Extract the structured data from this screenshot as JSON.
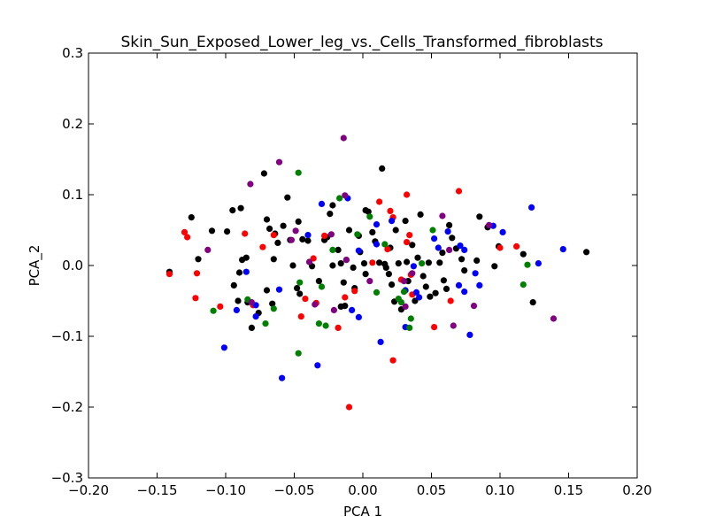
{
  "chart_data": {
    "type": "scatter",
    "title": "Skin_Sun_Exposed_Lower_leg_vs._Cells_Transformed_fibroblasts",
    "xlabel": "PCA 1",
    "ylabel": "PCA_2",
    "xlim": [
      -0.2,
      0.2
    ],
    "ylim": [
      -0.3,
      0.3
    ],
    "x_ticks": [
      -0.2,
      -0.15,
      -0.1,
      -0.05,
      0.0,
      0.05,
      0.1,
      0.15,
      0.2
    ],
    "x_tick_labels": [
      "−0.20",
      "−0.15",
      "−0.10",
      "−0.05",
      "0.00",
      "0.05",
      "0.10",
      "0.15",
      "0.20"
    ],
    "y_ticks": [
      -0.3,
      -0.2,
      -0.1,
      0.0,
      0.1,
      0.2,
      0.3
    ],
    "y_tick_labels": [
      "−0.3",
      "−0.2",
      "−0.1",
      "0.0",
      "0.1",
      "0.2",
      "0.3"
    ],
    "grid": false,
    "legend": "none",
    "series": [
      {
        "color": "#000000",
        "points": [
          [
            -0.141,
            -0.009
          ],
          [
            -0.125,
            0.068
          ],
          [
            -0.12,
            0.009
          ],
          [
            -0.11,
            0.049
          ],
          [
            -0.099,
            0.048
          ],
          [
            -0.095,
            0.078
          ],
          [
            -0.089,
            0.081
          ],
          [
            -0.088,
            0.008
          ],
          [
            -0.085,
            0.011
          ],
          [
            -0.09,
            -0.01
          ],
          [
            -0.094,
            -0.028
          ],
          [
            -0.091,
            -0.05
          ],
          [
            -0.084,
            -0.052
          ],
          [
            -0.081,
            -0.088
          ],
          [
            -0.076,
            -0.067
          ],
          [
            -0.072,
            0.13
          ],
          [
            -0.07,
            0.065
          ],
          [
            -0.068,
            0.052
          ],
          [
            -0.064,
            0.045
          ],
          [
            -0.062,
            0.032
          ],
          [
            -0.065,
            0.009
          ],
          [
            -0.07,
            -0.035
          ],
          [
            -0.066,
            -0.054
          ],
          [
            -0.058,
            0.056
          ],
          [
            -0.055,
            0.096
          ],
          [
            -0.053,
            0.036
          ],
          [
            -0.051,
            0.0
          ],
          [
            -0.048,
            -0.032
          ],
          [
            -0.046,
            -0.04
          ],
          [
            -0.047,
            0.062
          ],
          [
            -0.044,
            0.037
          ],
          [
            -0.04,
            0.035
          ],
          [
            -0.037,
            -0.001
          ],
          [
            -0.032,
            -0.022
          ],
          [
            -0.028,
            0.036
          ],
          [
            -0.026,
            0.04
          ],
          [
            -0.024,
            0.073
          ],
          [
            -0.022,
            0.085
          ],
          [
            -0.022,
            0.0
          ],
          [
            -0.018,
            0.022
          ],
          [
            -0.016,
            0.003
          ],
          [
            -0.014,
            -0.024
          ],
          [
            -0.016,
            -0.058
          ],
          [
            -0.013,
            -0.057
          ],
          [
            -0.01,
            0.05
          ],
          [
            -0.007,
            -0.003
          ],
          [
            -0.006,
            -0.032
          ],
          [
            -0.003,
            0.042
          ],
          [
            -0.002,
            0.019
          ],
          [
            0.001,
            0.003
          ],
          [
            0.002,
            0.078
          ],
          [
            0.004,
            0.076
          ],
          [
            0.007,
            0.047
          ],
          [
            0.009,
            0.034
          ],
          [
            0.012,
            0.004
          ],
          [
            0.014,
            0.137
          ],
          [
            0.016,
            0.002
          ],
          [
            0.017,
            -0.003
          ],
          [
            0.019,
            -0.012
          ],
          [
            0.02,
            0.025
          ],
          [
            0.021,
            -0.027
          ],
          [
            0.023,
            -0.051
          ],
          [
            0.024,
            0.05
          ],
          [
            0.026,
            0.003
          ],
          [
            0.028,
            -0.062
          ],
          [
            0.031,
            0.063
          ],
          [
            0.032,
            0.005
          ],
          [
            0.033,
            -0.022
          ],
          [
            0.036,
            0.029
          ],
          [
            0.038,
            -0.05
          ],
          [
            0.04,
            0.011
          ],
          [
            0.042,
            0.072
          ],
          [
            0.044,
            -0.015
          ],
          [
            0.046,
            -0.03
          ],
          [
            0.048,
            0.004
          ],
          [
            0.049,
            -0.044
          ],
          [
            0.053,
            -0.039
          ],
          [
            0.056,
            0.004
          ],
          [
            0.058,
            0.018
          ],
          [
            0.059,
            -0.021
          ],
          [
            0.061,
            -0.033
          ],
          [
            0.063,
            0.057
          ],
          [
            0.065,
            0.039
          ],
          [
            0.068,
            0.024
          ],
          [
            0.072,
            0.009
          ],
          [
            0.074,
            -0.007
          ],
          [
            0.083,
            0.007
          ],
          [
            0.085,
            0.069
          ],
          [
            0.091,
            0.054
          ],
          [
            0.096,
            -0.001
          ],
          [
            0.099,
            0.027
          ],
          [
            0.117,
            0.016
          ],
          [
            0.124,
            -0.052
          ],
          [
            0.163,
            0.019
          ],
          [
            0.002,
            -0.012
          ]
        ]
      },
      {
        "color": "#ff0000",
        "points": [
          [
            -0.141,
            -0.012
          ],
          [
            -0.13,
            0.047
          ],
          [
            -0.128,
            0.04
          ],
          [
            -0.121,
            -0.011
          ],
          [
            -0.122,
            -0.046
          ],
          [
            -0.104,
            -0.058
          ],
          [
            -0.086,
            0.045
          ],
          [
            -0.073,
            0.026
          ],
          [
            -0.08,
            -0.056
          ],
          [
            -0.065,
            0.043
          ],
          [
            -0.045,
            -0.072
          ],
          [
            -0.042,
            -0.047
          ],
          [
            -0.036,
            0.01
          ],
          [
            -0.034,
            -0.053
          ],
          [
            -0.028,
            0.042
          ],
          [
            -0.018,
            -0.088
          ],
          [
            -0.013,
            -0.045
          ],
          [
            -0.01,
            -0.2
          ],
          [
            -0.006,
            -0.036
          ],
          [
            0.007,
            0.004
          ],
          [
            0.012,
            0.09
          ],
          [
            0.018,
            0.023
          ],
          [
            0.022,
            0.068
          ],
          [
            0.02,
            0.077
          ],
          [
            0.022,
            -0.134
          ],
          [
            0.032,
            0.1
          ],
          [
            0.032,
            0.033
          ],
          [
            0.034,
            0.043
          ],
          [
            0.035,
            -0.013
          ],
          [
            0.036,
            -0.041
          ],
          [
            0.052,
            -0.087
          ],
          [
            0.064,
            -0.05
          ],
          [
            0.07,
            0.105
          ],
          [
            0.1,
            0.025
          ],
          [
            0.112,
            0.027
          ],
          [
            0.028,
            -0.02
          ]
        ]
      },
      {
        "color": "#0000ff",
        "points": [
          [
            -0.101,
            -0.116
          ],
          [
            -0.092,
            -0.063
          ],
          [
            -0.078,
            -0.072
          ],
          [
            -0.059,
            -0.159
          ],
          [
            -0.04,
            0.043
          ],
          [
            -0.033,
            -0.141
          ],
          [
            -0.03,
            0.087
          ],
          [
            -0.011,
            0.095
          ],
          [
            -0.008,
            -0.063
          ],
          [
            -0.003,
            0.021
          ],
          [
            -0.003,
            -0.073
          ],
          [
            0.01,
            0.03
          ],
          [
            0.01,
            0.058
          ],
          [
            0.013,
            -0.108
          ],
          [
            0.021,
            0.063
          ],
          [
            0.031,
            -0.035
          ],
          [
            0.037,
            -0.001
          ],
          [
            0.039,
            -0.038
          ],
          [
            0.041,
            -0.045
          ],
          [
            0.052,
            0.038
          ],
          [
            0.055,
            0.025
          ],
          [
            0.062,
            0.048
          ],
          [
            0.071,
            0.028
          ],
          [
            0.074,
            0.022
          ],
          [
            0.07,
            -0.028
          ],
          [
            0.074,
            -0.037
          ],
          [
            0.078,
            -0.098
          ],
          [
            0.082,
            -0.011
          ],
          [
            0.095,
            0.056
          ],
          [
            0.102,
            0.047
          ],
          [
            0.123,
            0.082
          ],
          [
            0.128,
            0.003
          ],
          [
            0.146,
            0.023
          ],
          [
            -0.085,
            -0.009
          ],
          [
            -0.061,
            -0.034
          ],
          [
            0.031,
            -0.087
          ],
          [
            0.085,
            -0.028
          ],
          [
            -0.078,
            -0.056
          ]
        ]
      },
      {
        "color": "#008000",
        "points": [
          [
            -0.109,
            -0.064
          ],
          [
            -0.084,
            -0.048
          ],
          [
            -0.071,
            -0.082
          ],
          [
            -0.065,
            -0.061
          ],
          [
            -0.047,
            0.131
          ],
          [
            -0.047,
            -0.124
          ],
          [
            -0.032,
            -0.082
          ],
          [
            -0.027,
            -0.085
          ],
          [
            -0.022,
            0.022
          ],
          [
            -0.017,
            0.095
          ],
          [
            -0.012,
            0.008
          ],
          [
            -0.004,
            0.044
          ],
          [
            0.005,
            0.069
          ],
          [
            0.01,
            -0.038
          ],
          [
            0.016,
            0.03
          ],
          [
            0.026,
            -0.047
          ],
          [
            0.028,
            -0.052
          ],
          [
            0.034,
            -0.088
          ],
          [
            0.035,
            -0.075
          ],
          [
            0.043,
            0.003
          ],
          [
            0.051,
            0.05
          ],
          [
            0.117,
            -0.027
          ],
          [
            0.12,
            0.001
          ],
          [
            -0.03,
            -0.03
          ],
          [
            -0.046,
            -0.024
          ],
          [
            0.03,
            -0.037
          ]
        ]
      },
      {
        "color": "#800080",
        "points": [
          [
            -0.113,
            0.022
          ],
          [
            -0.082,
            0.115
          ],
          [
            -0.081,
            -0.052
          ],
          [
            -0.061,
            0.146
          ],
          [
            -0.052,
            0.036
          ],
          [
            -0.049,
            0.049
          ],
          [
            -0.039,
            0.005
          ],
          [
            -0.035,
            -0.055
          ],
          [
            -0.021,
            -0.063
          ],
          [
            -0.014,
            0.18
          ],
          [
            -0.013,
            0.099
          ],
          [
            -0.012,
            0.008
          ],
          [
            0.005,
            -0.022
          ],
          [
            0.03,
            -0.022
          ],
          [
            0.031,
            -0.058
          ],
          [
            0.058,
            0.07
          ],
          [
            0.063,
            0.022
          ],
          [
            0.066,
            -0.085
          ],
          [
            0.081,
            -0.057
          ],
          [
            0.092,
            0.057
          ],
          [
            0.139,
            -0.075
          ],
          [
            0.036,
            -0.011
          ],
          [
            -0.023,
            0.044
          ]
        ]
      }
    ]
  }
}
